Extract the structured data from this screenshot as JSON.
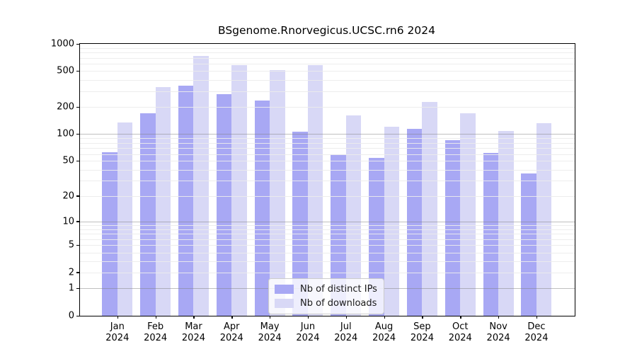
{
  "chart_data": {
    "type": "bar",
    "title": "BSgenome.Rnorvegicus.UCSC.rn6 2024",
    "categories": [
      "Jan 2024",
      "Feb 2024",
      "Mar 2024",
      "Apr 2024",
      "May 2024",
      "Jun 2024",
      "Jul 2024",
      "Aug 2024",
      "Sep 2024",
      "Oct 2024",
      "Nov 2024",
      "Dec 2024"
    ],
    "series": [
      {
        "name": "Nb of distinct IPs",
        "color": "#a8a8f4",
        "values": [
          63,
          170,
          345,
          280,
          235,
          107,
          60,
          54,
          115,
          85,
          62,
          36
        ]
      },
      {
        "name": "Nb of downloads",
        "color": "#d8d8f6",
        "values": [
          135,
          335,
          740,
          580,
          510,
          580,
          163,
          122,
          230,
          172,
          108,
          132
        ]
      }
    ],
    "yscale": "log1p",
    "ylim": [
      0,
      1000
    ],
    "yticks": [
      0,
      1,
      2,
      5,
      10,
      20,
      50,
      100,
      200,
      500,
      1000
    ],
    "grid": true,
    "legend_position": "lower-center-inside"
  },
  "colors": {
    "grid_minor": "#ececec",
    "grid_major": "#9c9c9c",
    "axis": "#000000",
    "legend_border": "#cccccc"
  }
}
